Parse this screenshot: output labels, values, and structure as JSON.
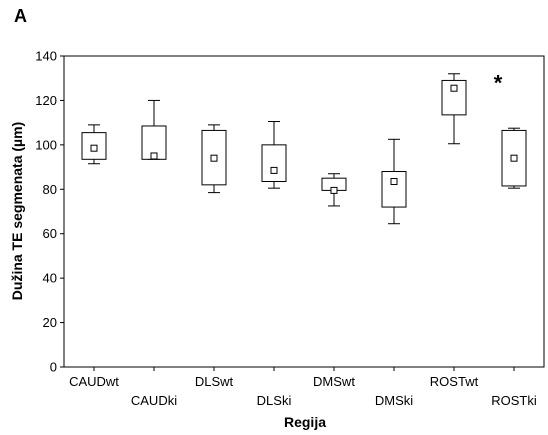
{
  "panel_label": "A",
  "chart_data": {
    "type": "box",
    "xlabel": "Regija",
    "ylabel": "Dužina TE segmenata (µm)",
    "ylim": [
      0,
      140
    ],
    "yticks": [
      0,
      20,
      40,
      60,
      80,
      100,
      120,
      140
    ],
    "grid": false,
    "categories": [
      "CAUDwt",
      "CAUDki",
      "DLSwt",
      "DLSki",
      "DMSwt",
      "DMSki",
      "ROSTwt",
      "ROSTki"
    ],
    "boxes": [
      {
        "category": "CAUDwt",
        "mean": 98.5,
        "q1": 93.5,
        "q3": 105.5,
        "min": 91.5,
        "max": 109
      },
      {
        "category": "CAUDki",
        "mean": 95,
        "q1": 93.5,
        "q3": 108.5,
        "min": 93.5,
        "max": 120
      },
      {
        "category": "DLSwt",
        "mean": 94,
        "q1": 82,
        "q3": 106.5,
        "min": 78.5,
        "max": 109
      },
      {
        "category": "DLSki",
        "mean": 88.5,
        "q1": 83.5,
        "q3": 100,
        "min": 80.5,
        "max": 110.5
      },
      {
        "category": "DMSwt",
        "mean": 79.5,
        "q1": 79.5,
        "q3": 85,
        "min": 72.5,
        "max": 87
      },
      {
        "category": "DMSki",
        "mean": 83.5,
        "q1": 72,
        "q3": 88,
        "min": 64.5,
        "max": 102.5
      },
      {
        "category": "ROSTwt",
        "mean": 125.5,
        "q1": 113.5,
        "q3": 129,
        "min": 100.5,
        "max": 132
      },
      {
        "category": "ROSTki",
        "mean": 94,
        "q1": 81.5,
        "q3": 106.5,
        "min": 80.5,
        "max": 107.5
      }
    ],
    "annotations": [
      {
        "text": "*",
        "category": "ROSTki",
        "y": 128
      }
    ]
  }
}
